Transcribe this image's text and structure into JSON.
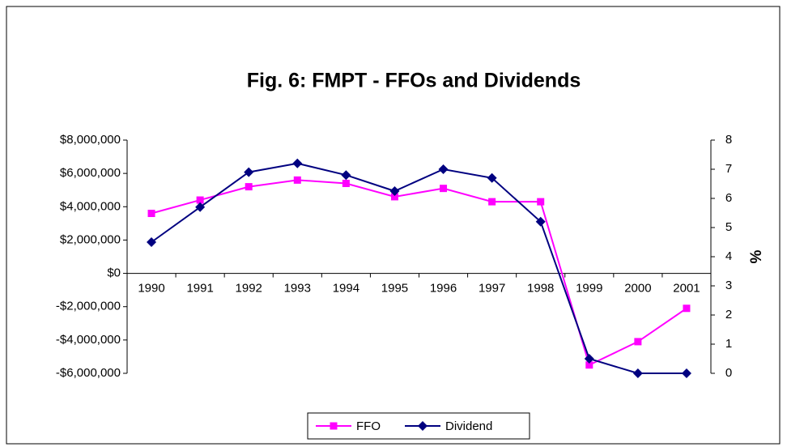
{
  "chart_data": {
    "type": "line",
    "title": "Fig. 6: FMPT -  FFOs and Dividends",
    "categories": [
      "1990",
      "1991",
      "1992",
      "1993",
      "1994",
      "1995",
      "1996",
      "1997",
      "1998",
      "1999",
      "2000",
      "2001"
    ],
    "series": [
      {
        "name": "FFO",
        "color": "#ff00ff",
        "marker": "square",
        "values": [
          3600000,
          4400000,
          5200000,
          5600000,
          5400000,
          4600000,
          5100000,
          4300000,
          4300000,
          -5500000,
          -4100000,
          -2100000
        ]
      },
      {
        "name": "Dividend",
        "color": "#000080",
        "marker": "diamond",
        "axis": "y2",
        "values": [
          4.5,
          5.7,
          6.9,
          7.2,
          6.8,
          6.25,
          7.0,
          6.7,
          5.2,
          0.5,
          0,
          0
        ]
      }
    ],
    "ylim": [
      -6000000,
      8000000
    ],
    "yticks": [
      {
        "value": -6000000,
        "label": "-$6,000,000"
      },
      {
        "value": -4000000,
        "label": "-$4,000,000"
      },
      {
        "value": -2000000,
        "label": "-$2,000,000"
      },
      {
        "value": 0,
        "label": "$0"
      },
      {
        "value": 2000000,
        "label": "$2,000,000"
      },
      {
        "value": 4000000,
        "label": "$4,000,000"
      },
      {
        "value": 6000000,
        "label": "$6,000,000"
      },
      {
        "value": 8000000,
        "label": "$8,000,000"
      }
    ],
    "y2lim": [
      0,
      8
    ],
    "y2ticks": [
      0,
      1,
      2,
      3,
      4,
      5,
      6,
      7,
      8
    ],
    "y2label": "%",
    "legend": "bottom"
  }
}
